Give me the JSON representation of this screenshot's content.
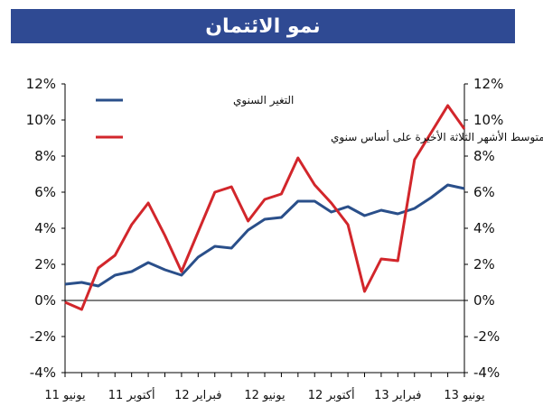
{
  "title": "نمو الائتمان",
  "chart_data": {
    "type": "line",
    "title": "نمو الائتمان",
    "x": [
      "يونيو 11",
      "",
      "",
      "",
      "أكتوبر 11",
      "",
      "",
      "",
      "فبراير 12",
      "",
      "",
      "",
      "يونيو 12",
      "",
      "",
      "",
      "أكتوبر 12",
      "",
      "",
      "",
      "فبراير 13",
      "",
      "",
      "",
      "يونيو 13"
    ],
    "ylim": [
      -4,
      12
    ],
    "yticks": [
      "-4%",
      "-2%",
      "0%",
      "2%",
      "4%",
      "6%",
      "8%",
      "10%",
      "12%"
    ],
    "ytick_values": [
      -4,
      -2,
      0,
      2,
      4,
      6,
      8,
      10,
      12
    ],
    "grid": false,
    "legend_position": "top-left",
    "series": [
      {
        "name": "التغير السنوي",
        "color": "#2a4f8a",
        "values": [
          0.9,
          1.0,
          0.8,
          1.4,
          1.6,
          2.1,
          1.7,
          1.4,
          2.4,
          3.0,
          2.9,
          3.9,
          4.5,
          4.6,
          5.5,
          5.5,
          4.9,
          5.2,
          4.7,
          5.0,
          4.8,
          5.1,
          5.7,
          6.4,
          6.2
        ]
      },
      {
        "name": "متوسط الأشهر الثلاثة الأخيرة على أساس سنوي",
        "color": "#d2262b",
        "values": [
          -0.1,
          -0.5,
          1.8,
          2.5,
          4.2,
          5.4,
          3.6,
          1.6,
          3.8,
          6.0,
          6.3,
          4.4,
          5.6,
          5.9,
          7.9,
          6.4,
          5.4,
          4.2,
          0.5,
          2.3,
          2.2,
          7.8,
          9.3,
          10.8,
          9.5
        ]
      }
    ]
  }
}
